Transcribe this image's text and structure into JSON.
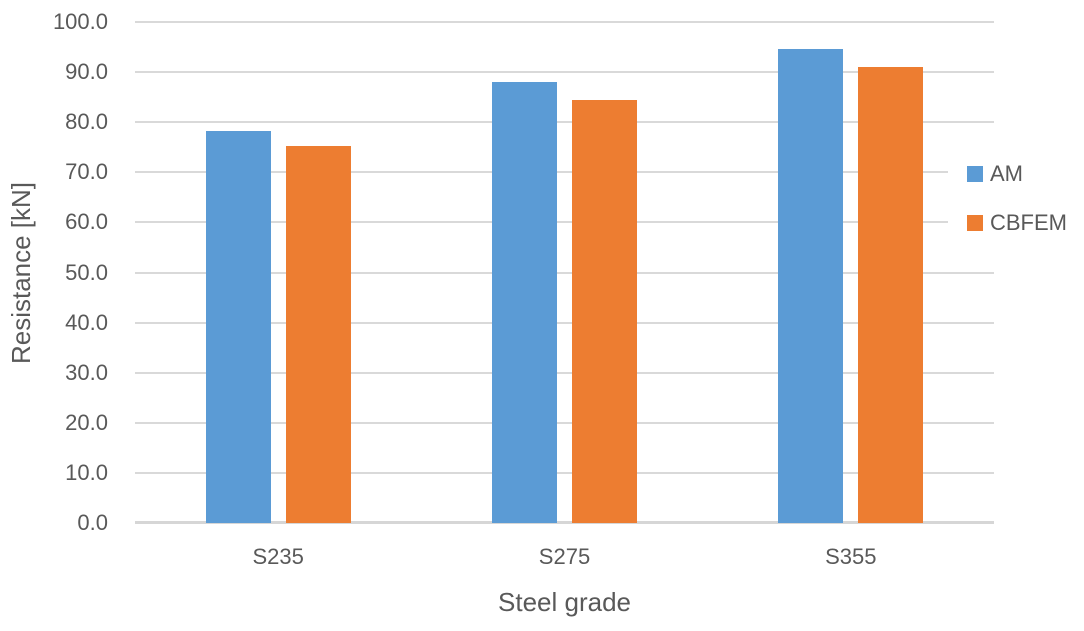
{
  "page": {
    "background_color": "#FFFFFF",
    "text_color": "#595959"
  },
  "chart_data": {
    "type": "bar",
    "title": "",
    "xlabel": "Steel grade",
    "ylabel": "Resistance [kN]",
    "categories": [
      "S235",
      "S275",
      "S355"
    ],
    "series": [
      {
        "name": "AM",
        "color": "#5B9BD5",
        "values": [
          78.3,
          88.0,
          94.6
        ]
      },
      {
        "name": "CBFEM",
        "color": "#ED7D31",
        "values": [
          75.2,
          84.4,
          91.0
        ]
      }
    ],
    "ylim": [
      0,
      100
    ],
    "ytick_step": 10,
    "ytick_labels": [
      "0.0",
      "10.0",
      "20.0",
      "30.0",
      "40.0",
      "50.0",
      "60.0",
      "70.0",
      "80.0",
      "90.0",
      "100.0"
    ],
    "grid": true,
    "gridline_color": "#D9D9D9",
    "axis_line_color": "#D6D6D6",
    "legend_position": "right",
    "legend_entries": [
      {
        "label": "AM",
        "swatch_color": "#5B9BD5"
      },
      {
        "label": "CBFEM",
        "swatch_color": "#ED7D31"
      }
    ]
  }
}
